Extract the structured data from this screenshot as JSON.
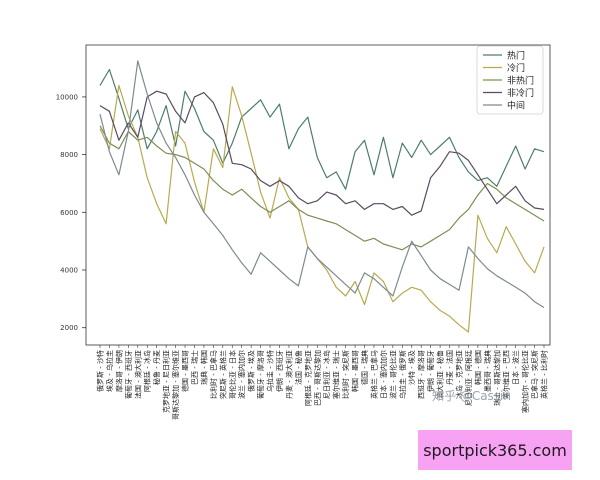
{
  "chart_data": {
    "type": "line",
    "yticks": [
      2000,
      4000,
      6000,
      8000,
      10000
    ],
    "ylim": [
      1400,
      11800
    ],
    "grid": false,
    "legend_position": "top-right",
    "categories": [
      "俄罗斯 - 沙特",
      "埃及 - 乌拉圭",
      "摩洛哥 - 伊朗",
      "葡萄牙 - 西班牙",
      "法国 - 澳大利亚",
      "阿根廷 - 冰岛",
      "秘鲁 - 丹麦",
      "克罗地亚 - 尼日利亚",
      "哥斯达黎加 - 塞尔维亚",
      "德国 - 墨西哥",
      "巴西 - 瑞士",
      "瑞典 - 韩国",
      "比利时 - 巴拿马",
      "突尼斯 - 英格兰",
      "哥伦比亚 - 日本",
      "波兰 - 塞内加尔",
      "俄罗斯 - 埃及",
      "葡萄牙 - 摩洛哥",
      "乌拉圭 - 沙特",
      "伊朗 - 西班牙",
      "丹麦 - 澳大利亚",
      "法国 - 秘鲁",
      "阿根廷 - 克罗地亚",
      "巴西 - 哥斯达黎加",
      "尼日利亚 - 冰岛",
      "塞尔维亚 - 瑞士",
      "比利时 - 突尼斯",
      "韩国 - 墨西哥",
      "德国 - 瑞典",
      "英格兰 - 巴拿马",
      "日本 - 塞内加尔",
      "波兰 - 哥伦比亚",
      "乌拉圭 - 俄罗斯",
      "沙特 - 埃及",
      "西班牙 - 摩洛哥",
      "伊朗 - 葡萄牙",
      "澳大利亚 - 秘鲁",
      "丹麦 - 法国",
      "冰岛 - 克罗地亚",
      "尼日利亚 - 阿根廷",
      "韩国 - 德国",
      "墨西哥 - 瑞典",
      "瑞士 - 哥斯达黎加",
      "塞尔维亚 - 巴西",
      "日本 - 波兰",
      "塞内加尔 - 哥伦比亚",
      "巴拿马 - 突尼斯",
      "英格兰 - 比利时"
    ],
    "series": [
      {
        "name": "热门",
        "color": "#4e7d6a",
        "values": [
          10400,
          10950,
          9950,
          8900,
          9550,
          8200,
          8800,
          9700,
          8300,
          10200,
          9600,
          8800,
          8500,
          7700,
          8400,
          9300,
          9600,
          9900,
          9300,
          9750,
          8200,
          8900,
          9300,
          7900,
          7200,
          7400,
          6800,
          8100,
          8500,
          7300,
          8600,
          7200,
          8400,
          7900,
          8500,
          8000,
          8300,
          8600,
          7900,
          7400,
          7100,
          7200,
          6900,
          7600,
          8300,
          7500,
          8200,
          8100
        ]
      },
      {
        "name": "冷门",
        "color": "#b9a94e",
        "values": [
          8900,
          8200,
          10400,
          9350,
          8600,
          7200,
          6300,
          5600,
          8800,
          8400,
          7050,
          6000,
          8200,
          7550,
          10350,
          9350,
          8050,
          6700,
          5800,
          7200,
          6500,
          6100,
          4800,
          4400,
          4000,
          3400,
          3100,
          3600,
          2800,
          3900,
          3600,
          2900,
          3200,
          3400,
          3300,
          2900,
          2600,
          2400,
          2100,
          1850,
          5900,
          5100,
          4600,
          5500,
          4900,
          4300,
          3900,
          4800
        ]
      },
      {
        "name": "非热门",
        "color": "#7a8f55",
        "values": [
          9000,
          8400,
          8200,
          8800,
          8500,
          8600,
          8300,
          8050,
          8000,
          7900,
          7700,
          7500,
          7100,
          6800,
          6600,
          6800,
          6500,
          6200,
          6000,
          6200,
          6400,
          6100,
          5900,
          5800,
          5700,
          5600,
          5400,
          5200,
          5000,
          5100,
          4900,
          4800,
          4700,
          4900,
          4800,
          5000,
          5200,
          5400,
          5800,
          6100,
          6600,
          7000,
          6800,
          6500,
          6300,
          6100,
          5900,
          5700
        ]
      },
      {
        "name": "非冷门",
        "color": "#5b4a62",
        "values": [
          9700,
          9500,
          8500,
          9100,
          8600,
          10000,
          10200,
          10100,
          9500,
          9100,
          10000,
          10150,
          9800,
          9050,
          7700,
          7650,
          7500,
          7100,
          6900,
          7100,
          6900,
          6500,
          6300,
          6400,
          6700,
          6600,
          6300,
          6400,
          6100,
          6300,
          6300,
          6100,
          6200,
          5900,
          6050,
          7200,
          7600,
          8100,
          8050,
          7800,
          7300,
          6800,
          6300,
          6600,
          6900,
          6400,
          6150,
          6100
        ]
      },
      {
        "name": "中间",
        "color": "#7d8a8f",
        "values": [
          9400,
          8100,
          7300,
          8800,
          11250,
          10100,
          9100,
          8400,
          7900,
          7300,
          6600,
          6000,
          5600,
          5200,
          4700,
          4250,
          3850,
          4600,
          4300,
          4000,
          3700,
          3450,
          4800,
          4400,
          4100,
          3800,
          3500,
          3200,
          3900,
          3700,
          3400,
          3100,
          4100,
          5000,
          4500,
          4000,
          3700,
          3500,
          3300,
          4800,
          4400,
          4050,
          3800,
          3600,
          3400,
          3200,
          2900,
          2700
        ]
      }
    ]
  },
  "watermark": "知乎 @Cassin",
  "site": "sportpick365.com"
}
